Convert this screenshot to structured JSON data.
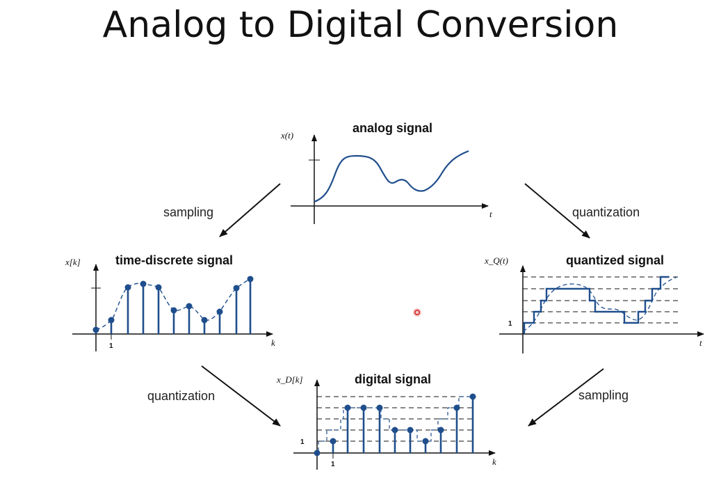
{
  "title": "Analog to Digital Conversion",
  "colors": {
    "signal": "#1f4e8c",
    "axis": "#111111",
    "cursor": "#d62828"
  },
  "panels": {
    "analog": {
      "title": "analog signal",
      "y_label": "x(t)",
      "x_label": "t"
    },
    "time_discrete": {
      "title": "time-discrete signal",
      "y_label": "x[k]",
      "x_label": "k",
      "tick": "1"
    },
    "quantized": {
      "title": "quantized signal",
      "y_label": "x_Q(t)",
      "x_label": "t",
      "tick": "1"
    },
    "digital": {
      "title": "digital signal",
      "y_label": "x_D[k]",
      "x_label": "k",
      "tick_y": "1",
      "tick_x": "1"
    }
  },
  "arrows": {
    "top_left": "sampling",
    "top_right": "quantization",
    "bottom_left": "quantization",
    "bottom_right": "sampling"
  }
}
